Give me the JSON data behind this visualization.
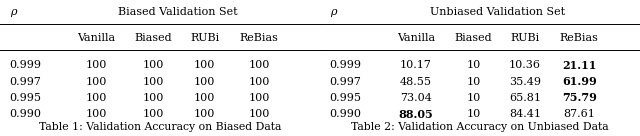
{
  "table1": {
    "title": "Biased Validation Set",
    "caption": "Table 1: Validation Accuracy on Biased Data",
    "col_header": [
      "Vanilla",
      "Biased",
      "RUBi",
      "ReBias"
    ],
    "row_header": [
      "0.999",
      "0.997",
      "0.995",
      "0.990"
    ],
    "rho_label": "ρ",
    "data": [
      [
        "100",
        "100",
        "100",
        "100"
      ],
      [
        "100",
        "100",
        "100",
        "100"
      ],
      [
        "100",
        "100",
        "100",
        "100"
      ],
      [
        "100",
        "100",
        "100",
        "100"
      ]
    ],
    "bold": [
      [
        false,
        false,
        false,
        false
      ],
      [
        false,
        false,
        false,
        false
      ],
      [
        false,
        false,
        false,
        false
      ],
      [
        false,
        false,
        false,
        false
      ]
    ]
  },
  "table2": {
    "title": "Unbiased Validation Set",
    "caption": "Table 2: Validation Accuracy on Unbiased Data",
    "col_header": [
      "Vanilla",
      "Biased",
      "RUBi",
      "ReBias"
    ],
    "row_header": [
      "0.999",
      "0.997",
      "0.995",
      "0.990"
    ],
    "rho_label": "ρ",
    "data": [
      [
        "10.17",
        "10",
        "10.36",
        "21.11"
      ],
      [
        "48.55",
        "10",
        "35.49",
        "61.99"
      ],
      [
        "73.04",
        "10",
        "65.81",
        "75.79"
      ],
      [
        "88.05",
        "10",
        "84.41",
        "87.61"
      ]
    ],
    "bold": [
      [
        false,
        false,
        false,
        true
      ],
      [
        false,
        false,
        false,
        true
      ],
      [
        false,
        false,
        false,
        true
      ],
      [
        true,
        false,
        false,
        false
      ]
    ]
  },
  "bg_color": "white",
  "font_size": 8.0,
  "caption_font_size": 7.8,
  "fig_width": 6.4,
  "fig_height": 1.36
}
